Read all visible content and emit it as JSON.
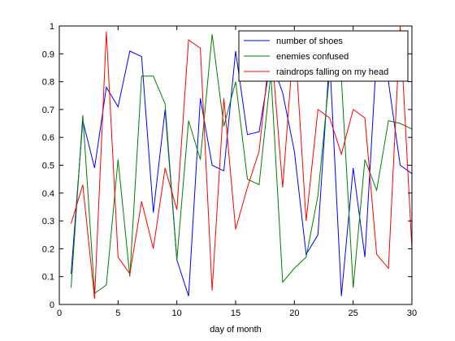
{
  "chart_data": {
    "type": "line",
    "title": "",
    "xlabel": "day of month",
    "ylabel": "",
    "xlim": [
      0,
      30
    ],
    "ylim": [
      0,
      1
    ],
    "grid": false,
    "legend_position": "top-right",
    "x_ticks": [
      "0",
      "5",
      "10",
      "15",
      "20",
      "25",
      "30"
    ],
    "y_ticks": [
      "0",
      "0.1",
      "0.2",
      "0.3",
      "0.4",
      "0.5",
      "0.6",
      "0.7",
      "0.8",
      "0.9",
      "1"
    ],
    "x": [
      1,
      2,
      3,
      4,
      5,
      6,
      7,
      8,
      9,
      10,
      11,
      12,
      13,
      14,
      15,
      16,
      17,
      18,
      19,
      20,
      21,
      22,
      23,
      24,
      25,
      26,
      27,
      28,
      29,
      30
    ],
    "series": [
      {
        "name": "number of shoes",
        "color": "#0000ff",
        "values": [
          0.11,
          0.66,
          0.49,
          0.78,
          0.71,
          0.91,
          0.89,
          0.33,
          0.7,
          0.16,
          0.03,
          0.74,
          0.5,
          0.48,
          0.91,
          0.61,
          0.62,
          0.88,
          0.76,
          0.55,
          0.18,
          0.25,
          0.89,
          0.03,
          0.49,
          0.17,
          0.9,
          0.8,
          0.5,
          0.47
        ]
      },
      {
        "name": "enemies confused",
        "color": "#008000",
        "values": [
          0.06,
          0.68,
          0.04,
          0.07,
          0.52,
          0.1,
          0.82,
          0.82,
          0.72,
          0.16,
          0.66,
          0.52,
          0.97,
          0.64,
          0.8,
          0.45,
          0.43,
          0.83,
          0.08,
          0.13,
          0.17,
          0.39,
          0.83,
          0.81,
          0.06,
          0.52,
          0.41,
          0.66,
          0.65,
          0.63
        ]
      },
      {
        "name": "raindrops falling on my head",
        "color": "#ff0000",
        "values": [
          0.29,
          0.43,
          0.02,
          0.98,
          0.17,
          0.11,
          0.37,
          0.2,
          0.49,
          0.34,
          0.95,
          0.92,
          0.05,
          0.74,
          0.27,
          0.42,
          0.55,
          0.95,
          0.42,
          0.98,
          0.3,
          0.7,
          0.67,
          0.54,
          0.7,
          0.67,
          0.18,
          0.13,
          1.0,
          0.2
        ]
      }
    ]
  }
}
